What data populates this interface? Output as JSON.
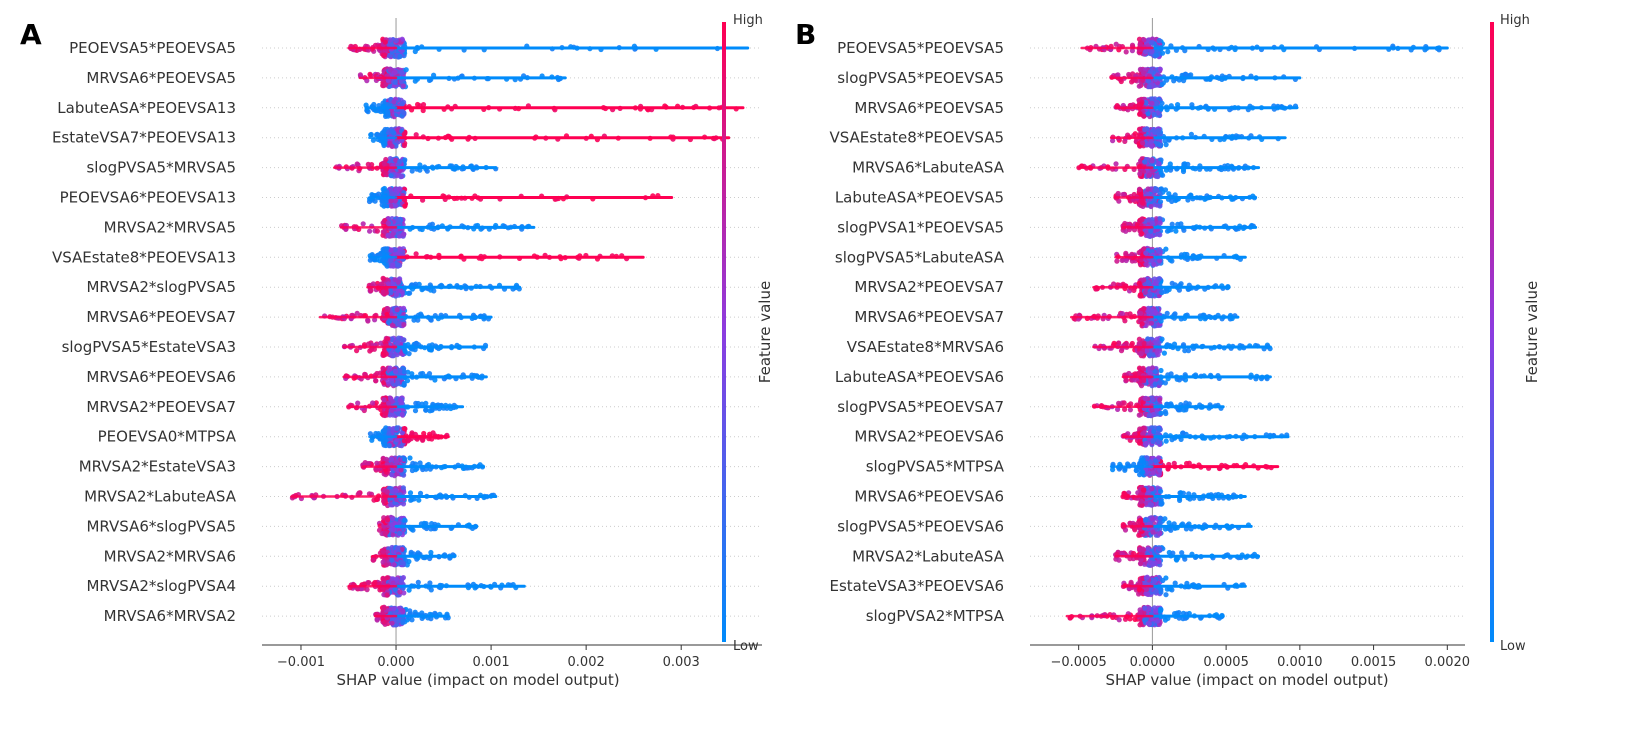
{
  "colorbar": {
    "high_label": "High",
    "low_label": "Low",
    "title": "Feature value",
    "high_color": "#ff0052",
    "low_color": "#008bfb",
    "mid_color": "#8c3ce0"
  },
  "chart_data": [
    {
      "type": "scatter",
      "subtype": "beeswarm",
      "panel_label": "A",
      "title": "",
      "xlabel": "SHAP value (impact on model output)",
      "ylabel": "",
      "xlim": [
        -0.00141,
        0.00385
      ],
      "xticks": [
        -0.001,
        0.0,
        0.001,
        0.002,
        0.003
      ],
      "xtick_labels": [
        "−0.001",
        "0.000",
        "0.001",
        "0.002",
        "0.003"
      ],
      "features": [
        {
          "name": "PEOEVSA5*PEOEVSA5",
          "min": -0.0005,
          "max": 0.0037,
          "high_side": "left"
        },
        {
          "name": "MRVSA6*PEOEVSA5",
          "min": -0.00038,
          "max": 0.00178,
          "high_side": "left"
        },
        {
          "name": "LabuteASA*PEOEVSA13",
          "min": -0.00032,
          "max": 0.00365,
          "high_side": "right"
        },
        {
          "name": "EstateVSA7*PEOEVSA13",
          "min": -0.00028,
          "max": 0.0035,
          "high_side": "right"
        },
        {
          "name": "slogPVSA5*MRVSA5",
          "min": -0.00065,
          "max": 0.00105,
          "high_side": "left"
        },
        {
          "name": "PEOEVSA6*PEOEVSA13",
          "min": -0.00028,
          "max": 0.0029,
          "high_side": "right"
        },
        {
          "name": "MRVSA2*MRVSA5",
          "min": -0.00058,
          "max": 0.00145,
          "high_side": "left"
        },
        {
          "name": "VSAEstate8*PEOEVSA13",
          "min": -0.00028,
          "max": 0.0026,
          "high_side": "right"
        },
        {
          "name": "MRVSA2*slogPVSA5",
          "min": -0.0003,
          "max": 0.0013,
          "high_side": "left"
        },
        {
          "name": "MRVSA6*PEOEVSA7",
          "min": -0.0008,
          "max": 0.001,
          "high_side": "left"
        },
        {
          "name": "slogPVSA5*EstateVSA3",
          "min": -0.00055,
          "max": 0.00095,
          "high_side": "left"
        },
        {
          "name": "MRVSA6*PEOEVSA6",
          "min": -0.00055,
          "max": 0.00095,
          "high_side": "left"
        },
        {
          "name": "MRVSA2*PEOEVSA7",
          "min": -0.0005,
          "max": 0.0007,
          "high_side": "left"
        },
        {
          "name": "PEOEVSA0*MTPSA",
          "min": -0.00028,
          "max": 0.00055,
          "high_side": "right"
        },
        {
          "name": "MRVSA2*EstateVSA3",
          "min": -0.00035,
          "max": 0.00092,
          "high_side": "left"
        },
        {
          "name": "MRVSA2*LabuteASA",
          "min": -0.0011,
          "max": 0.00105,
          "high_side": "left"
        },
        {
          "name": "MRVSA6*slogPVSA5",
          "min": -0.00018,
          "max": 0.00085,
          "high_side": "left"
        },
        {
          "name": "MRVSA2*MRVSA6",
          "min": -0.00025,
          "max": 0.00062,
          "high_side": "left"
        },
        {
          "name": "MRVSA2*slogPVSA4",
          "min": -0.0005,
          "max": 0.00135,
          "high_side": "left"
        },
        {
          "name": "MRVSA6*MRVSA2",
          "min": -0.00022,
          "max": 0.00055,
          "high_side": "left"
        }
      ]
    },
    {
      "type": "scatter",
      "subtype": "beeswarm",
      "panel_label": "B",
      "title": "",
      "xlabel": "SHAP value (impact on model output)",
      "ylabel": "",
      "xlim": [
        -0.00083,
        0.00212
      ],
      "xticks": [
        -0.0005,
        0.0,
        0.0005,
        0.001,
        0.0015,
        0.002
      ],
      "xtick_labels": [
        "−0.0005",
        "0.0000",
        "0.0005",
        "0.0010",
        "0.0015",
        "0.0020"
      ],
      "features": [
        {
          "name": "PEOEVSA5*PEOEVSA5",
          "min": -0.00048,
          "max": 0.002,
          "high_side": "left"
        },
        {
          "name": "slogPVSA5*PEOEVSA5",
          "min": -0.00028,
          "max": 0.001,
          "high_side": "left"
        },
        {
          "name": "MRVSA6*PEOEVSA5",
          "min": -0.00025,
          "max": 0.00098,
          "high_side": "left"
        },
        {
          "name": "VSAEstate8*PEOEVSA5",
          "min": -0.00028,
          "max": 0.0009,
          "high_side": "left"
        },
        {
          "name": "MRVSA6*LabuteASA",
          "min": -0.0005,
          "max": 0.00072,
          "high_side": "left"
        },
        {
          "name": "LabuteASA*PEOEVSA5",
          "min": -0.00025,
          "max": 0.0007,
          "high_side": "left"
        },
        {
          "name": "slogPVSA1*PEOEVSA5",
          "min": -0.0002,
          "max": 0.0007,
          "high_side": "left"
        },
        {
          "name": "slogPVSA5*LabuteASA",
          "min": -0.00025,
          "max": 0.00063,
          "high_side": "left"
        },
        {
          "name": "MRVSA2*PEOEVSA7",
          "min": -0.0004,
          "max": 0.00052,
          "high_side": "left"
        },
        {
          "name": "MRVSA6*PEOEVSA7",
          "min": -0.00055,
          "max": 0.00058,
          "high_side": "left"
        },
        {
          "name": "VSAEstate8*MRVSA6",
          "min": -0.0004,
          "max": 0.0008,
          "high_side": "left"
        },
        {
          "name": "LabuteASA*PEOEVSA6",
          "min": -0.0002,
          "max": 0.0008,
          "high_side": "left"
        },
        {
          "name": "slogPVSA5*PEOEVSA7",
          "min": -0.0004,
          "max": 0.00048,
          "high_side": "left"
        },
        {
          "name": "MRVSA2*PEOEVSA6",
          "min": -0.0002,
          "max": 0.00092,
          "high_side": "left"
        },
        {
          "name": "slogPVSA5*MTPSA",
          "min": -0.00028,
          "max": 0.00085,
          "high_side": "right"
        },
        {
          "name": "MRVSA6*PEOEVSA6",
          "min": -0.0002,
          "max": 0.00063,
          "high_side": "left"
        },
        {
          "name": "slogPVSA5*PEOEVSA6",
          "min": -0.0002,
          "max": 0.00067,
          "high_side": "left"
        },
        {
          "name": "MRVSA2*LabuteASA",
          "min": -0.00025,
          "max": 0.00072,
          "high_side": "left"
        },
        {
          "name": "EstateVSA3*PEOEVSA6",
          "min": -0.0002,
          "max": 0.00063,
          "high_side": "left"
        },
        {
          "name": "slogPVSA2*MTPSA",
          "min": -0.00058,
          "max": 0.00048,
          "high_side": "left"
        }
      ]
    }
  ]
}
